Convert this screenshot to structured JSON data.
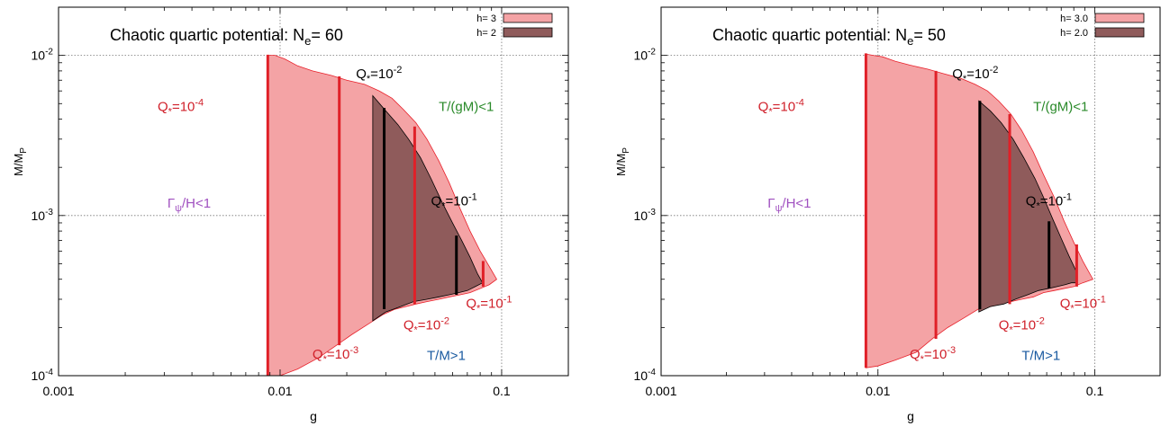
{
  "chart_data": [
    {
      "type": "area",
      "title": "Chaotic quartic potential: N",
      "title_sub": "e",
      "title_tail": "= 60",
      "xlabel": "g",
      "ylabel": "M/M",
      "ylabel_sub": "P",
      "xscale": "log",
      "yscale": "log",
      "xlim": [
        0.001,
        0.2
      ],
      "ylim": [
        0.0001,
        0.02
      ],
      "grid": true,
      "legend_position": "top-right",
      "xticks": [
        {
          "v": 0.001,
          "label": "0.001"
        },
        {
          "v": 0.01,
          "label": "0.01"
        },
        {
          "v": 0.1,
          "label": "0.1"
        }
      ],
      "yticks": [
        {
          "v": 0.0001,
          "base": "10",
          "exp": "-4"
        },
        {
          "v": 0.001,
          "base": "10",
          "exp": "-3"
        },
        {
          "v": 0.01,
          "base": "10",
          "exp": "-2"
        }
      ],
      "series": [
        {
          "name": "h= 3",
          "color": "#f4a3a5",
          "stroke": "#e8202a",
          "upper": [
            [
              0.0088,
              0.01
            ],
            [
              0.0095,
              0.01
            ],
            [
              0.0105,
              0.0095
            ],
            [
              0.012,
              0.0086
            ],
            [
              0.014,
              0.008
            ],
            [
              0.017,
              0.0075
            ],
            [
              0.02,
              0.007
            ],
            [
              0.024,
              0.0066
            ],
            [
              0.028,
              0.006
            ],
            [
              0.032,
              0.0054
            ],
            [
              0.036,
              0.0046
            ],
            [
              0.041,
              0.0038
            ],
            [
              0.046,
              0.003
            ],
            [
              0.052,
              0.0022
            ],
            [
              0.058,
              0.0016
            ],
            [
              0.065,
              0.0011
            ],
            [
              0.072,
              0.0008
            ],
            [
              0.08,
              0.0006
            ],
            [
              0.088,
              0.00048
            ],
            [
              0.095,
              0.0004
            ]
          ],
          "lower": [
            [
              0.0088,
              0.0001
            ],
            [
              0.01,
              0.0001
            ],
            [
              0.012,
              0.00011
            ],
            [
              0.015,
              0.00013
            ],
            [
              0.018,
              0.000155
            ],
            [
              0.021,
              0.00018
            ],
            [
              0.025,
              0.00021
            ],
            [
              0.029,
              0.00024
            ],
            [
              0.033,
              0.00026
            ],
            [
              0.037,
              0.00027
            ],
            [
              0.041,
              0.00028
            ],
            [
              0.046,
              0.00029
            ],
            [
              0.052,
              0.0003
            ],
            [
              0.058,
              0.00031
            ],
            [
              0.065,
              0.00032
            ],
            [
              0.072,
              0.00033
            ],
            [
              0.08,
              0.00035
            ],
            [
              0.088,
              0.00037
            ],
            [
              0.095,
              0.0004
            ]
          ]
        },
        {
          "name": "h= 2",
          "color": "#8f5b5b",
          "stroke": "#000000",
          "upper": [
            [
              0.0262,
              0.0056
            ],
            [
              0.03,
              0.0045
            ],
            [
              0.034,
              0.0037
            ],
            [
              0.038,
              0.003
            ],
            [
              0.043,
              0.0023
            ],
            [
              0.048,
              0.0017
            ],
            [
              0.054,
              0.0012
            ],
            [
              0.06,
              0.0009
            ],
            [
              0.066,
              0.0007
            ],
            [
              0.072,
              0.00055
            ],
            [
              0.078,
              0.00043
            ],
            [
              0.082,
              0.00038
            ]
          ],
          "lower": [
            [
              0.0262,
              0.00022
            ],
            [
              0.03,
              0.00025
            ],
            [
              0.035,
              0.00027
            ],
            [
              0.04,
              0.00029
            ],
            [
              0.046,
              0.0003
            ],
            [
              0.052,
              0.00031
            ],
            [
              0.058,
              0.00032
            ],
            [
              0.064,
              0.00033
            ],
            [
              0.07,
              0.00034
            ],
            [
              0.076,
              0.00036
            ],
            [
              0.082,
              0.00038
            ]
          ]
        }
      ],
      "red_lines": [
        {
          "x": 0.0088,
          "y1": 0.0001,
          "y2": 0.0101
        },
        {
          "x": 0.0185,
          "y1": 0.000155,
          "y2": 0.0074
        },
        {
          "x": 0.0405,
          "y1": 0.00028,
          "y2": 0.0036
        },
        {
          "x": 0.0825,
          "y1": 0.00036,
          "y2": 0.00052
        }
      ],
      "black_lines": [
        {
          "x": 0.0295,
          "y1": 0.00026,
          "y2": 0.0047
        },
        {
          "x": 0.0625,
          "y1": 0.00032,
          "y2": 0.00075
        }
      ],
      "annotations": [
        {
          "text": "Q",
          "sub": "*",
          "mid": "=10",
          "sup": "-4",
          "x": 0.0028,
          "y": 0.0045,
          "color": "#d0202a"
        },
        {
          "text": "Q",
          "sub": "*",
          "mid": "=10",
          "sup": "-2",
          "x": 0.022,
          "y": 0.0072,
          "color": "#000000"
        },
        {
          "text": "T/(gM)<1",
          "x": 0.052,
          "y": 0.0045,
          "color": "#2a8a2a"
        },
        {
          "text": "Q",
          "sub": "*",
          "mid": "=10",
          "sup": "-1",
          "x": 0.048,
          "y": 0.00116,
          "color": "#000000"
        },
        {
          "text": "Γ",
          "sub": "ψ",
          "tail": "/H<1",
          "x": 0.0031,
          "y": 0.00112,
          "color": "#a050c0"
        },
        {
          "text": "Q",
          "sub": "*",
          "mid": "=10",
          "sup": "-1",
          "x": 0.069,
          "y": 0.000265,
          "color": "#d0202a"
        },
        {
          "text": "Q",
          "sub": "*",
          "mid": "=10",
          "sup": "-2",
          "x": 0.036,
          "y": 0.000195,
          "color": "#d0202a"
        },
        {
          "text": "Q",
          "sub": "*",
          "mid": "=10",
          "sup": "-3",
          "x": 0.014,
          "y": 0.000128,
          "color": "#d0202a"
        },
        {
          "text": "T/M>1",
          "x": 0.046,
          "y": 0.000125,
          "color": "#1a5aa0"
        }
      ]
    },
    {
      "type": "area",
      "title": "Chaotic quartic potential: N",
      "title_sub": "e",
      "title_tail": "= 50",
      "xlabel": "g",
      "ylabel": "M/M",
      "ylabel_sub": "P",
      "xscale": "log",
      "yscale": "log",
      "xlim": [
        0.001,
        0.2
      ],
      "ylim": [
        0.0001,
        0.02
      ],
      "grid": true,
      "legend_position": "top-right",
      "xticks": [
        {
          "v": 0.001,
          "label": "0.001"
        },
        {
          "v": 0.01,
          "label": "0.01"
        },
        {
          "v": 0.1,
          "label": "0.1"
        }
      ],
      "yticks": [
        {
          "v": 0.0001,
          "base": "10",
          "exp": "-4"
        },
        {
          "v": 0.001,
          "base": "10",
          "exp": "-3"
        },
        {
          "v": 0.01,
          "base": "10",
          "exp": "-2"
        }
      ],
      "series": [
        {
          "name": "h= 3.0",
          "color": "#f4a3a5",
          "stroke": "#e8202a",
          "upper": [
            [
              0.0088,
              0.0102
            ],
            [
              0.0095,
              0.01
            ],
            [
              0.0105,
              0.0098
            ],
            [
              0.012,
              0.0092
            ],
            [
              0.014,
              0.0087
            ],
            [
              0.017,
              0.0082
            ],
            [
              0.02,
              0.0077
            ],
            [
              0.024,
              0.0072
            ],
            [
              0.028,
              0.0066
            ],
            [
              0.032,
              0.006
            ],
            [
              0.036,
              0.0052
            ],
            [
              0.041,
              0.0043
            ],
            [
              0.046,
              0.0034
            ],
            [
              0.052,
              0.0025
            ],
            [
              0.058,
              0.0018
            ],
            [
              0.065,
              0.0013
            ],
            [
              0.072,
              0.00093
            ],
            [
              0.08,
              0.00068
            ],
            [
              0.088,
              0.00052
            ],
            [
              0.098,
              0.0004
            ]
          ],
          "lower": [
            [
              0.0088,
              0.000112
            ],
            [
              0.01,
              0.000115
            ],
            [
              0.012,
              0.000125
            ],
            [
              0.015,
              0.00014
            ],
            [
              0.018,
              0.000172
            ],
            [
              0.021,
              0.0002
            ],
            [
              0.025,
              0.00023
            ],
            [
              0.029,
              0.00026
            ],
            [
              0.033,
              0.00027
            ],
            [
              0.037,
              0.00028
            ],
            [
              0.041,
              0.00029
            ],
            [
              0.046,
              0.0003
            ],
            [
              0.052,
              0.00031
            ],
            [
              0.058,
              0.00033
            ],
            [
              0.065,
              0.00034
            ],
            [
              0.072,
              0.00035
            ],
            [
              0.08,
              0.00036
            ],
            [
              0.088,
              0.00038
            ],
            [
              0.098,
              0.0004
            ]
          ]
        },
        {
          "name": "h= 2.0",
          "color": "#8f5b5b",
          "stroke": "#000000",
          "upper": [
            [
              0.0292,
              0.0052
            ],
            [
              0.033,
              0.0045
            ],
            [
              0.037,
              0.0038
            ],
            [
              0.042,
              0.003
            ],
            [
              0.047,
              0.0023
            ],
            [
              0.053,
              0.0017
            ],
            [
              0.058,
              0.0013
            ],
            [
              0.064,
              0.00095
            ],
            [
              0.07,
              0.00072
            ],
            [
              0.076,
              0.00056
            ],
            [
              0.082,
              0.00045
            ]
          ],
          "lower": [
            [
              0.0292,
              0.00025
            ],
            [
              0.033,
              0.00027
            ],
            [
              0.038,
              0.00028
            ],
            [
              0.043,
              0.0003
            ],
            [
              0.049,
              0.00032
            ],
            [
              0.055,
              0.00034
            ],
            [
              0.061,
              0.00035
            ],
            [
              0.067,
              0.00036
            ],
            [
              0.073,
              0.00037
            ],
            [
              0.078,
              0.00038
            ],
            [
              0.082,
              0.00038
            ]
          ]
        }
      ],
      "red_lines": [
        {
          "x": 0.0088,
          "y1": 0.000112,
          "y2": 0.0103
        },
        {
          "x": 0.0185,
          "y1": 0.00017,
          "y2": 0.008
        },
        {
          "x": 0.0405,
          "y1": 0.00028,
          "y2": 0.0043
        },
        {
          "x": 0.0825,
          "y1": 0.00036,
          "y2": 0.00066
        }
      ],
      "black_lines": [
        {
          "x": 0.0295,
          "y1": 0.00026,
          "y2": 0.0052
        },
        {
          "x": 0.0615,
          "y1": 0.00035,
          "y2": 0.00092
        }
      ],
      "annotations": [
        {
          "text": "Q",
          "sub": "*",
          "mid": "=10",
          "sup": "-4",
          "x": 0.0028,
          "y": 0.0045,
          "color": "#d0202a"
        },
        {
          "text": "Q",
          "sub": "*",
          "mid": "=10",
          "sup": "-2",
          "x": 0.022,
          "y": 0.0072,
          "color": "#000000"
        },
        {
          "text": "T/(gM)<1",
          "x": 0.052,
          "y": 0.0045,
          "color": "#2a8a2a"
        },
        {
          "text": "Q",
          "sub": "*",
          "mid": "=10",
          "sup": "-1",
          "x": 0.048,
          "y": 0.00116,
          "color": "#000000"
        },
        {
          "text": "Γ",
          "sub": "ψ",
          "tail": "/H<1",
          "x": 0.0031,
          "y": 0.00112,
          "color": "#a050c0"
        },
        {
          "text": "Q",
          "sub": "*",
          "mid": "=10",
          "sup": "-1",
          "x": 0.069,
          "y": 0.000265,
          "color": "#d0202a"
        },
        {
          "text": "Q",
          "sub": "*",
          "mid": "=10",
          "sup": "-2",
          "x": 0.036,
          "y": 0.000195,
          "color": "#d0202a"
        },
        {
          "text": "Q",
          "sub": "*",
          "mid": "=10",
          "sup": "-3",
          "x": 0.014,
          "y": 0.000128,
          "color": "#d0202a"
        },
        {
          "text": "T/M>1",
          "x": 0.046,
          "y": 0.000125,
          "color": "#1a5aa0"
        }
      ]
    }
  ]
}
